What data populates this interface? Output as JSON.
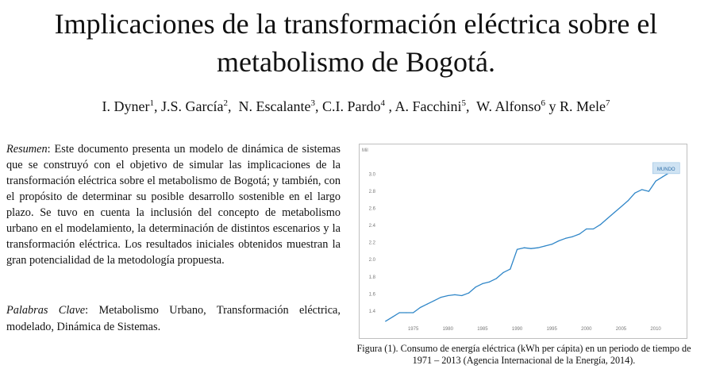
{
  "title": "Implicaciones de la transformación eléctrica sobre el metabolismo de Bogotá.",
  "authors": [
    {
      "name": "I. Dyner",
      "sup": "1",
      "sep": ", "
    },
    {
      "name": "J.S. García",
      "sup": "2",
      "sep": ",  "
    },
    {
      "name": "N. Escalante",
      "sup": "3",
      "sep": ", "
    },
    {
      "name": "C.I. Pardo",
      "sup": "4",
      "sep": " , "
    },
    {
      "name": "A. Facchini",
      "sup": "5",
      "sep": ",  "
    },
    {
      "name": "W. Alfonso",
      "sup": "6",
      "sep": " y "
    },
    {
      "name": "R. Mele",
      "sup": "7",
      "sep": ""
    }
  ],
  "abstract": {
    "label": "Resumen",
    "text": ": Este documento presenta un modelo de dinámica de sistemas que se construyó con el objetivo de simular las implicaciones de la transformación eléctrica sobre el metabolismo de Bogotá; y también, con el propósito de determinar su posible desarrollo sostenible en el largo plazo. Se tuvo en cuenta la inclusión del concepto de metabolismo urbano en el modelamiento, la determinación de distintos escenarios y la transformación eléctrica. Los resultados iniciales obtenidos muestran la gran potencialidad de la metodología propuesta."
  },
  "keywords": {
    "label": "Palabras Clave",
    "text": ": Metabolismo Urbano, Transformación eléctrica, modelado, Dinámica de Sistemas."
  },
  "caption": "Figura (1). Consumo de energía  eléctrica (kWh per cápita) en un periodo de tiempo de 1971 – 2013 (Agencia Internacional de la Energía, 2014).",
  "chart_data": {
    "type": "line",
    "unit_label": "Mil",
    "series": [
      {
        "name": "MUNDO",
        "color": "#2f86c8",
        "x": [
          1971,
          1972,
          1973,
          1974,
          1975,
          1976,
          1977,
          1978,
          1979,
          1980,
          1981,
          1982,
          1983,
          1984,
          1985,
          1986,
          1987,
          1988,
          1989,
          1990,
          1991,
          1992,
          1993,
          1994,
          1995,
          1996,
          1997,
          1998,
          1999,
          2000,
          2001,
          2002,
          2003,
          2004,
          2005,
          2006,
          2007,
          2008,
          2009,
          2010,
          2011,
          2012,
          2013
        ],
        "values": [
          1.28,
          1.33,
          1.38,
          1.38,
          1.38,
          1.44,
          1.48,
          1.52,
          1.56,
          1.58,
          1.59,
          1.58,
          1.61,
          1.68,
          1.72,
          1.74,
          1.78,
          1.85,
          1.89,
          2.12,
          2.14,
          2.13,
          2.14,
          2.16,
          2.18,
          2.22,
          2.25,
          2.27,
          2.3,
          2.36,
          2.36,
          2.41,
          2.48,
          2.55,
          2.62,
          2.69,
          2.78,
          2.82,
          2.8,
          2.92,
          2.97,
          3.02,
          3.09
        ]
      }
    ],
    "xlim": [
      1970,
      2014
    ],
    "ylim": [
      1.25,
      3.2
    ],
    "x_ticks": [
      "1975",
      "1980",
      "1985",
      "1990",
      "1995",
      "2000",
      "2005",
      "2010"
    ],
    "y_ticks": [
      "1.4",
      "1.6",
      "1.8",
      "2.0",
      "2.2",
      "2.4",
      "2.6",
      "2.8",
      "3.0"
    ],
    "grid": false
  }
}
